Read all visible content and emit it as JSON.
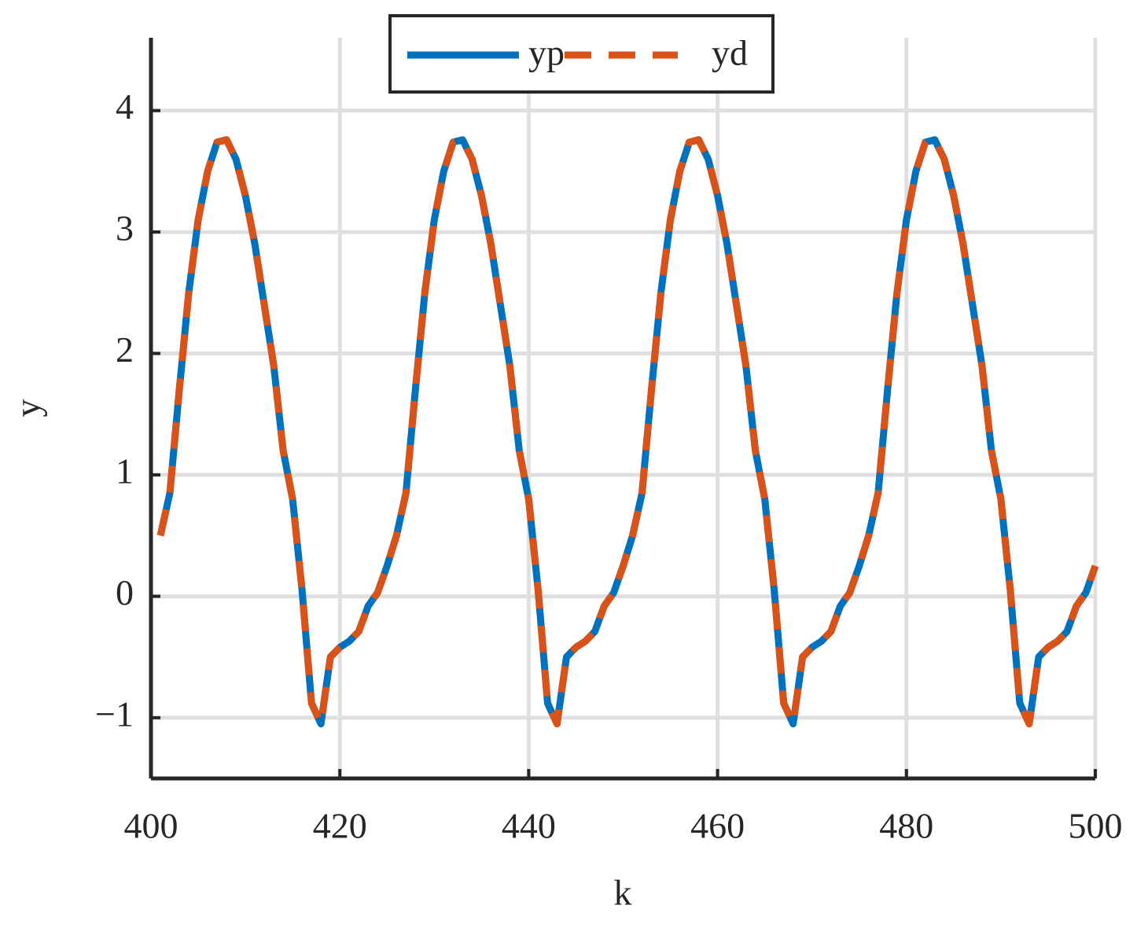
{
  "chart_data": {
    "type": "line",
    "xlabel": "k",
    "ylabel": "y",
    "x": [
      401,
      402,
      403,
      404,
      405,
      406,
      407,
      408,
      409,
      410,
      411,
      412,
      413,
      414,
      415,
      416,
      417,
      418,
      419,
      420,
      421,
      422,
      423,
      424,
      425,
      426,
      427,
      428,
      429,
      430,
      431,
      432,
      433,
      434,
      435,
      436,
      437,
      438,
      439,
      440,
      441,
      442,
      443,
      444,
      445,
      446,
      447,
      448,
      449,
      450,
      451,
      452,
      453,
      454,
      455,
      456,
      457,
      458,
      459,
      460,
      461,
      462,
      463,
      464,
      465,
      466,
      467,
      468,
      469,
      470,
      471,
      472,
      473,
      474,
      475,
      476,
      477,
      478,
      479,
      480,
      481,
      482,
      483,
      484,
      485,
      486,
      487,
      488,
      489,
      490,
      491,
      492,
      493,
      494,
      495,
      496,
      497,
      498,
      499,
      500
    ],
    "series": [
      {
        "name": "yp",
        "color": "#0072bd",
        "style": "solid",
        "values": [
          0.5,
          0.85,
          1.7,
          2.5,
          3.1,
          3.5,
          3.74,
          3.76,
          3.6,
          3.3,
          2.9,
          2.4,
          1.9,
          1.2,
          0.8,
          0.05,
          -0.88,
          -1.05,
          -0.5,
          -0.42,
          -0.37,
          -0.29,
          -0.08,
          0.03,
          0.25,
          0.5,
          0.85,
          1.7,
          2.5,
          3.1,
          3.5,
          3.74,
          3.76,
          3.6,
          3.3,
          2.9,
          2.4,
          1.9,
          1.2,
          0.8,
          0.05,
          -0.88,
          -1.05,
          -0.5,
          -0.42,
          -0.37,
          -0.29,
          -0.08,
          0.03,
          0.25,
          0.5,
          0.85,
          1.7,
          2.5,
          3.1,
          3.5,
          3.74,
          3.76,
          3.6,
          3.3,
          2.9,
          2.4,
          1.9,
          1.2,
          0.8,
          0.05,
          -0.88,
          -1.05,
          -0.5,
          -0.42,
          -0.37,
          -0.29,
          -0.08,
          0.03,
          0.25,
          0.5,
          0.85,
          1.7,
          2.5,
          3.1,
          3.5,
          3.74,
          3.76,
          3.6,
          3.3,
          2.9,
          2.4,
          1.9,
          1.2,
          0.8,
          0.05,
          -0.88,
          -1.05,
          -0.5,
          -0.42,
          -0.37,
          -0.29,
          -0.08,
          0.03,
          0.25
        ]
      },
      {
        "name": "yd",
        "color": "#d95319",
        "style": "dashed",
        "values": [
          0.5,
          0.85,
          1.7,
          2.5,
          3.1,
          3.5,
          3.74,
          3.76,
          3.6,
          3.3,
          2.9,
          2.4,
          1.9,
          1.2,
          0.8,
          0.05,
          -0.88,
          -1.05,
          -0.5,
          -0.42,
          -0.37,
          -0.29,
          -0.08,
          0.03,
          0.25,
          0.5,
          0.85,
          1.7,
          2.5,
          3.1,
          3.5,
          3.74,
          3.76,
          3.6,
          3.3,
          2.9,
          2.4,
          1.9,
          1.2,
          0.8,
          0.05,
          -0.88,
          -1.05,
          -0.5,
          -0.42,
          -0.37,
          -0.29,
          -0.08,
          0.03,
          0.25,
          0.5,
          0.85,
          1.7,
          2.5,
          3.1,
          3.5,
          3.74,
          3.76,
          3.6,
          3.3,
          2.9,
          2.4,
          1.9,
          1.2,
          0.8,
          0.05,
          -0.88,
          -1.05,
          -0.5,
          -0.42,
          -0.37,
          -0.29,
          -0.08,
          0.03,
          0.25,
          0.5,
          0.85,
          1.7,
          2.5,
          3.1,
          3.5,
          3.74,
          3.76,
          3.6,
          3.3,
          2.9,
          2.4,
          1.9,
          1.2,
          0.8,
          0.05,
          -0.88,
          -1.05,
          -0.5,
          -0.42,
          -0.37,
          -0.29,
          -0.08,
          0.03,
          0.25
        ]
      }
    ],
    "xlim": [
      400,
      500
    ],
    "xticks": [
      400,
      420,
      440,
      460,
      480,
      500
    ],
    "ylim": [
      -1.5,
      4.6
    ],
    "yticks": [
      {
        "value": -1,
        "label": "−1"
      },
      0,
      1,
      2,
      3,
      4
    ],
    "grid": true,
    "legend": "north"
  }
}
